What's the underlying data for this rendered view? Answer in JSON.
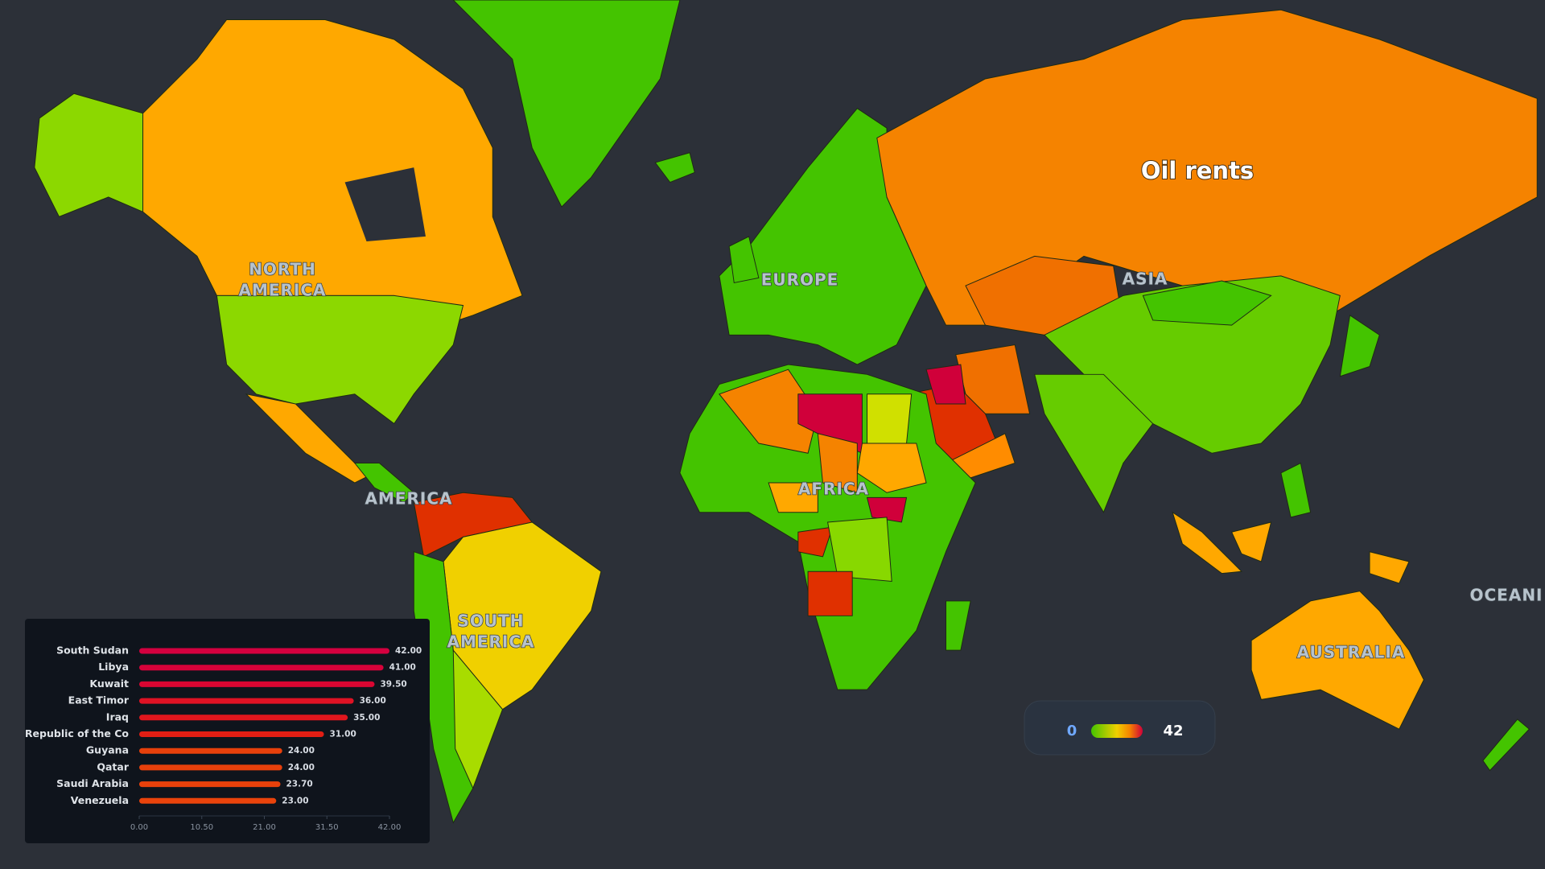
{
  "map": {
    "title": "Oil rents",
    "region_labels": [
      [
        "NORTH",
        "AMERICA"
      ],
      [
        "EUROPE"
      ],
      [
        "ASIA"
      ],
      [
        "AFRICA"
      ],
      [
        "AMERICA"
      ],
      [
        "SOUTH",
        "AMERICA"
      ],
      [
        "AUSTRALIA"
      ],
      [
        "OCEANI"
      ]
    ]
  },
  "legend": {
    "min": 0,
    "max": 42
  },
  "chart_data": {
    "type": "bar",
    "orientation": "horizontal",
    "categories": [
      "South Sudan",
      "Libya",
      "Kuwait",
      "East Timor",
      "Iraq",
      "Republic of the Co",
      "Guyana",
      "Qatar",
      "Saudi Arabia",
      "Venezuela"
    ],
    "values": [
      42,
      41,
      39.5,
      36,
      35,
      31,
      24,
      24,
      23.7,
      23
    ],
    "value_labels": [
      "42.00",
      "41.00",
      "39.50",
      "36.00",
      "35.00",
      "31.00",
      "24.00",
      "24.00",
      "23.70",
      "23.00"
    ],
    "colors": [
      "#d4003f",
      "#d6023a",
      "#da0632",
      "#df1224",
      "#e0161d",
      "#e21e14",
      "#e8400b",
      "#e8400b",
      "#e9410b",
      "#ea430b"
    ],
    "xlim": [
      0,
      42
    ],
    "xticks": [
      {
        "value": 0,
        "label": "0.00"
      },
      {
        "value": 10.5,
        "label": "10.50"
      },
      {
        "value": 21,
        "label": "21.00"
      },
      {
        "value": 31.5,
        "label": "31.50"
      },
      {
        "value": 42,
        "label": "42.00"
      }
    ]
  }
}
